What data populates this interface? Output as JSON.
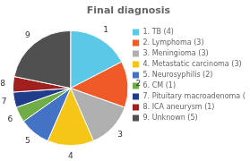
{
  "chart_data": {
    "type": "pie",
    "title": "Final diagnosis",
    "categories": [
      "1",
      "2",
      "3",
      "4",
      "5",
      "6",
      "7",
      "8",
      "9"
    ],
    "values": [
      4,
      3,
      3,
      3,
      2,
      1,
      1,
      1,
      5
    ],
    "colors": [
      "#5bc8e8",
      "#f05a28",
      "#b0b0b0",
      "#f5c518",
      "#4472c4",
      "#70ad47",
      "#1f3d8a",
      "#a02020",
      "#505050"
    ],
    "legend_labels": [
      "1. TB (4)",
      "2. Lymphoma (3)",
      "3. Meningioma (3)",
      "4. Metastatic carcinoma (3)",
      "5. Neurosyphilis (2)",
      "6. CM (1)",
      "7. Pituitary macroadenoma (1)",
      "8. ICA aneurysm (1)",
      "9. Unknown (5)"
    ],
    "legend": "right"
  }
}
